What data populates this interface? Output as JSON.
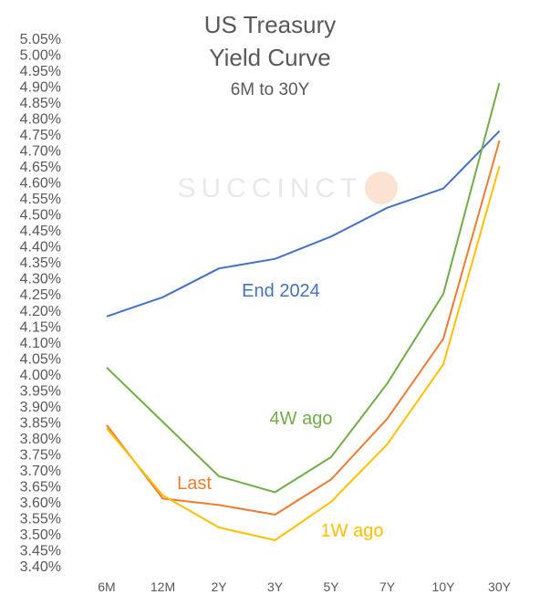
{
  "chart_data": {
    "type": "line",
    "title_line1": "US Treasury",
    "title_line2": "Yield Curve",
    "subtitle": "6M to 30Y",
    "xlabel": "",
    "ylabel": "",
    "categories": [
      "6M",
      "12M",
      "2Y",
      "3Y",
      "5Y",
      "7Y",
      "10Y",
      "30Y"
    ],
    "ylim": [
      3.4,
      5.05
    ],
    "ystep": 0.05,
    "y_tick_format": "percent_2dp",
    "grid": false,
    "legend": "inline labels",
    "watermark": "SUCCINCT",
    "series": [
      {
        "name": "End 2024",
        "color": "#4472C4",
        "values": [
          4.18,
          4.24,
          4.33,
          4.36,
          4.43,
          4.52,
          4.58,
          4.76
        ]
      },
      {
        "name": "4W ago",
        "color": "#70AD47",
        "values": [
          4.02,
          3.85,
          3.68,
          3.63,
          3.74,
          3.97,
          4.25,
          4.91
        ]
      },
      {
        "name": "Last",
        "color": "#ED7D31",
        "values": [
          3.84,
          3.61,
          3.59,
          3.56,
          3.67,
          3.86,
          4.11,
          4.73
        ]
      },
      {
        "name": "1W ago",
        "color": "#FFC000",
        "values": [
          3.83,
          3.62,
          3.52,
          3.48,
          3.6,
          3.78,
          4.03,
          4.65
        ]
      }
    ]
  }
}
